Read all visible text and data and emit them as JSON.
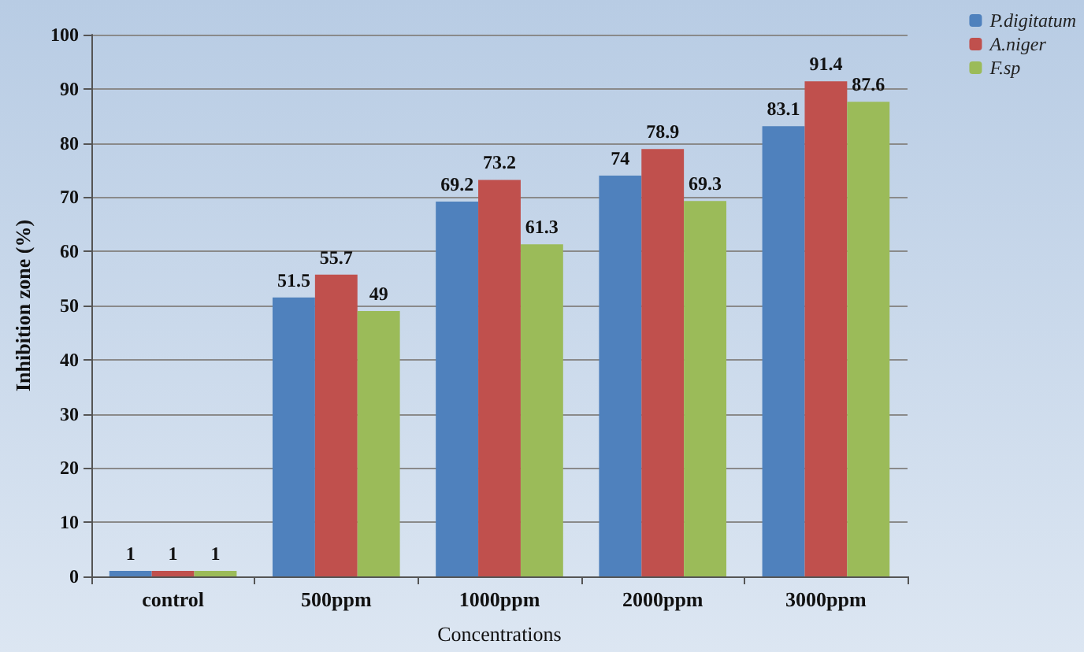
{
  "chart_data": {
    "type": "bar",
    "xlabel": "Concentrations",
    "ylabel": "Inhibition zone (%)",
    "categories": [
      "control",
      "500ppm",
      "1000ppm",
      "2000ppm",
      "3000ppm"
    ],
    "series": [
      {
        "name": "P.digitatum",
        "color": "#4f81bd",
        "values": [
          1,
          51.5,
          69.2,
          74,
          83.1
        ]
      },
      {
        "name": "A.niger",
        "color": "#c0504d",
        "values": [
          1,
          55.7,
          73.2,
          78.9,
          91.4
        ]
      },
      {
        "name": "F.sp",
        "color": "#9bbb59",
        "values": [
          1,
          49,
          61.3,
          69.3,
          87.6
        ]
      }
    ],
    "ylim": [
      0,
      100
    ],
    "yticks": [
      0,
      10,
      20,
      30,
      40,
      50,
      60,
      70,
      80,
      90,
      100
    ],
    "grid": "y",
    "legend": "top right",
    "data_labels": true
  }
}
